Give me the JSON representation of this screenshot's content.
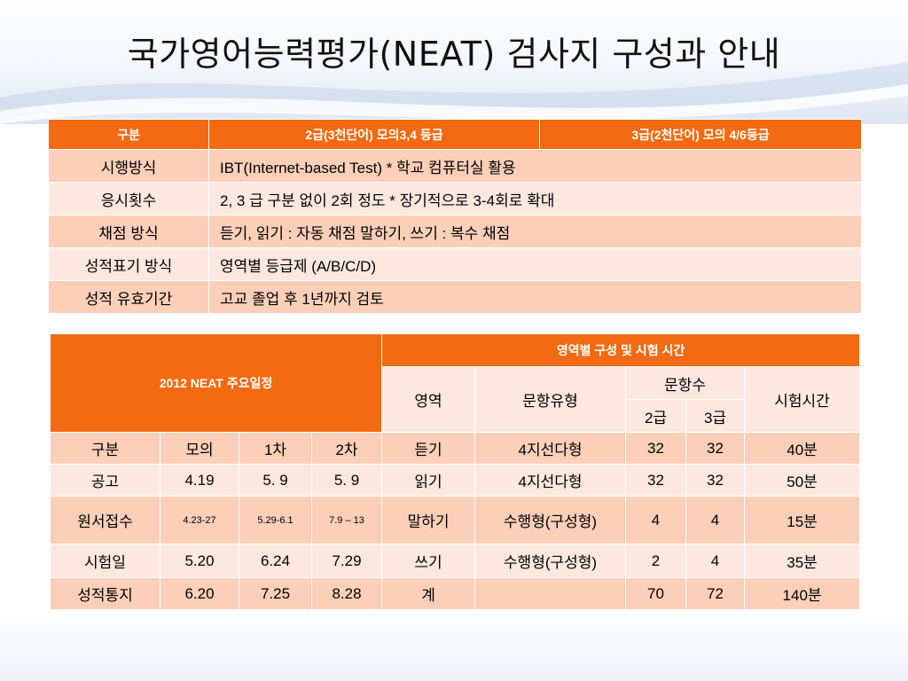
{
  "title": "국가영어능력평가(NEAT) 검사지 구성과 안내",
  "info_table": {
    "headers": [
      "구분",
      "2급(3천단어) 모의3,4 등급",
      "3급(2천단어) 모의 4/6등급"
    ],
    "rows": [
      {
        "label": "시행방식",
        "value": "IBT(Internet-based Test) * 학교 컴퓨터실 활용"
      },
      {
        "label": "응시횟수",
        "value": "2, 3 급 구분 없이 2회 정도 * 장기적으로 3-4회로 확대"
      },
      {
        "label": "채점 방식",
        "value": "듣기, 읽기 : 자동 채점   말하기, 쓰기 : 복수 채점"
      },
      {
        "label": "성적표기 방식",
        "value": "영역별 등급제 (A/B/C/D)"
      },
      {
        "label": "성적 유효기간",
        "value": "고교 졸업 후 1년까지 검토"
      }
    ]
  },
  "schedule_table": {
    "schedule_title": "2012 NEAT 주요일정",
    "composition_title": "영역별 구성 및 시험 시간",
    "col_area": "영역",
    "col_type": "문항유형",
    "col_count": "문항수",
    "col_grade2": "2급",
    "col_grade3": "3급",
    "col_time": "시험시간",
    "rows": [
      {
        "c1": "구분",
        "c2": "모의",
        "c3": "1차",
        "c4": "2차",
        "area": "듣기",
        "type": "4지선다형",
        "g2": "32",
        "g3": "32",
        "time": "40분"
      },
      {
        "c1": "공고",
        "c2": "4.19",
        "c3": "5. 9",
        "c4": "5. 9",
        "area": "읽기",
        "type": "4지선다형",
        "g2": "32",
        "g3": "32",
        "time": "50분"
      },
      {
        "c1": "원서접수",
        "c2": "4.23-27",
        "c3": "5.29-6.1",
        "c4": "7.9 – 13",
        "area": "말하기",
        "type": "수행형(구성형)",
        "g2": "4",
        "g3": "4",
        "time": "15분"
      },
      {
        "c1": "시험일",
        "c2": "5.20",
        "c3": "6.24",
        "c4": "7.29",
        "area": "쓰기",
        "type": "수행형(구성형)",
        "g2": "2",
        "g3": "4",
        "time": "35분"
      },
      {
        "c1": "성적통지",
        "c2": "6.20",
        "c3": "7.25",
        "c4": "8.28",
        "area": "계",
        "type": "",
        "g2": "70",
        "g3": "72",
        "time": "140분"
      }
    ]
  }
}
